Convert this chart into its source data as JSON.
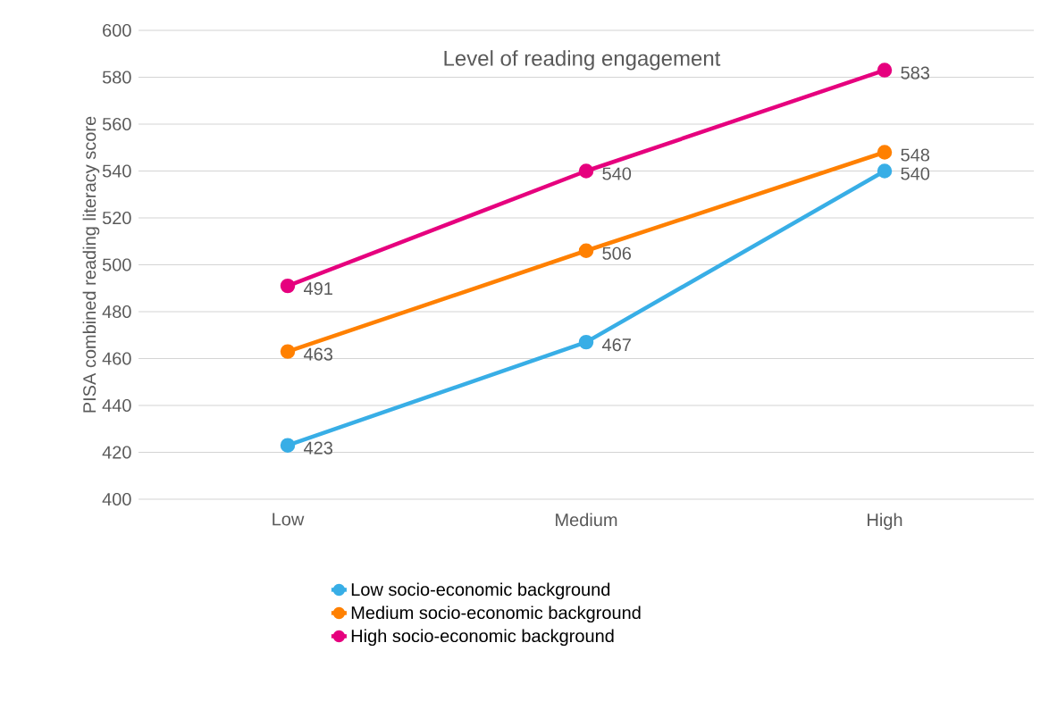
{
  "chart_data": {
    "type": "line",
    "title": "Level of reading engagement",
    "ylabel": "PISA combined reading literacy score",
    "categories": [
      "Low",
      "Medium",
      "High"
    ],
    "series": [
      {
        "name": "Low socio-economic background",
        "color": "#38aee6",
        "values": [
          423,
          467,
          540
        ]
      },
      {
        "name": "Medium socio-economic background",
        "color": "#ff8000",
        "values": [
          463,
          506,
          548
        ]
      },
      {
        "name": "High socio-economic background",
        "color": "#e6007e",
        "values": [
          491,
          540,
          583
        ]
      }
    ],
    "ylim": [
      400,
      600
    ],
    "yticks": [
      400,
      420,
      440,
      460,
      480,
      500,
      520,
      540,
      560,
      580,
      600
    ],
    "grid": "y",
    "legend": "bottom",
    "marker": "circle",
    "line_style": "solid",
    "data_labels": true
  }
}
